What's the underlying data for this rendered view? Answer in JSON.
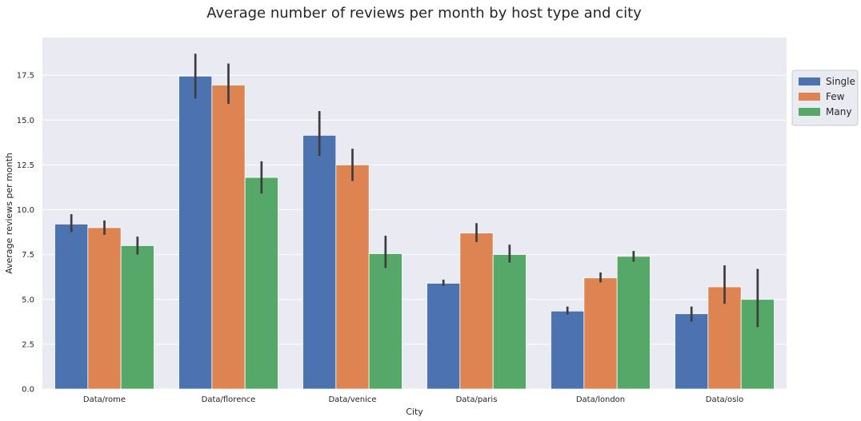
{
  "chart_data": {
    "type": "bar",
    "title": "Average number of reviews per month by host type and city",
    "xlabel": "City",
    "ylabel": "Average reviews per month",
    "categories": [
      "Data/rome",
      "Data/florence",
      "Data/venice",
      "Data/paris",
      "Data/london",
      "Data/oslo"
    ],
    "ylim": [
      0,
      19.6
    ],
    "yticks": [
      0,
      2.5,
      5,
      7.5,
      10,
      12.5,
      15,
      17.5
    ],
    "ytick_labels": [
      "0.0",
      "2.5",
      "5.0",
      "7.5",
      "10.0",
      "12.5",
      "15.0",
      "17.5"
    ],
    "grid": true,
    "legend_position": "right, upper",
    "series": [
      {
        "name": "Single",
        "color": "#4c72b0",
        "values": [
          9.2,
          17.45,
          14.15,
          5.9,
          4.35,
          4.2
        ],
        "error_low": [
          8.75,
          16.2,
          13.0,
          5.75,
          4.15,
          3.75
        ],
        "error_high": [
          9.75,
          18.7,
          15.5,
          6.1,
          4.6,
          4.6
        ]
      },
      {
        "name": "Few",
        "color": "#dd8452",
        "values": [
          9.0,
          16.95,
          12.5,
          8.7,
          6.2,
          5.7
        ],
        "error_low": [
          8.6,
          15.9,
          11.6,
          8.2,
          5.95,
          4.75
        ],
        "error_high": [
          9.4,
          18.15,
          13.4,
          9.25,
          6.5,
          6.9
        ]
      },
      {
        "name": "Many",
        "color": "#55a868",
        "values": [
          8.0,
          11.8,
          7.55,
          7.5,
          7.4,
          5.0
        ],
        "error_low": [
          7.5,
          10.9,
          6.75,
          7.05,
          7.1,
          3.45
        ],
        "error_high": [
          8.5,
          12.7,
          8.55,
          8.05,
          7.7,
          6.7
        ]
      }
    ]
  }
}
